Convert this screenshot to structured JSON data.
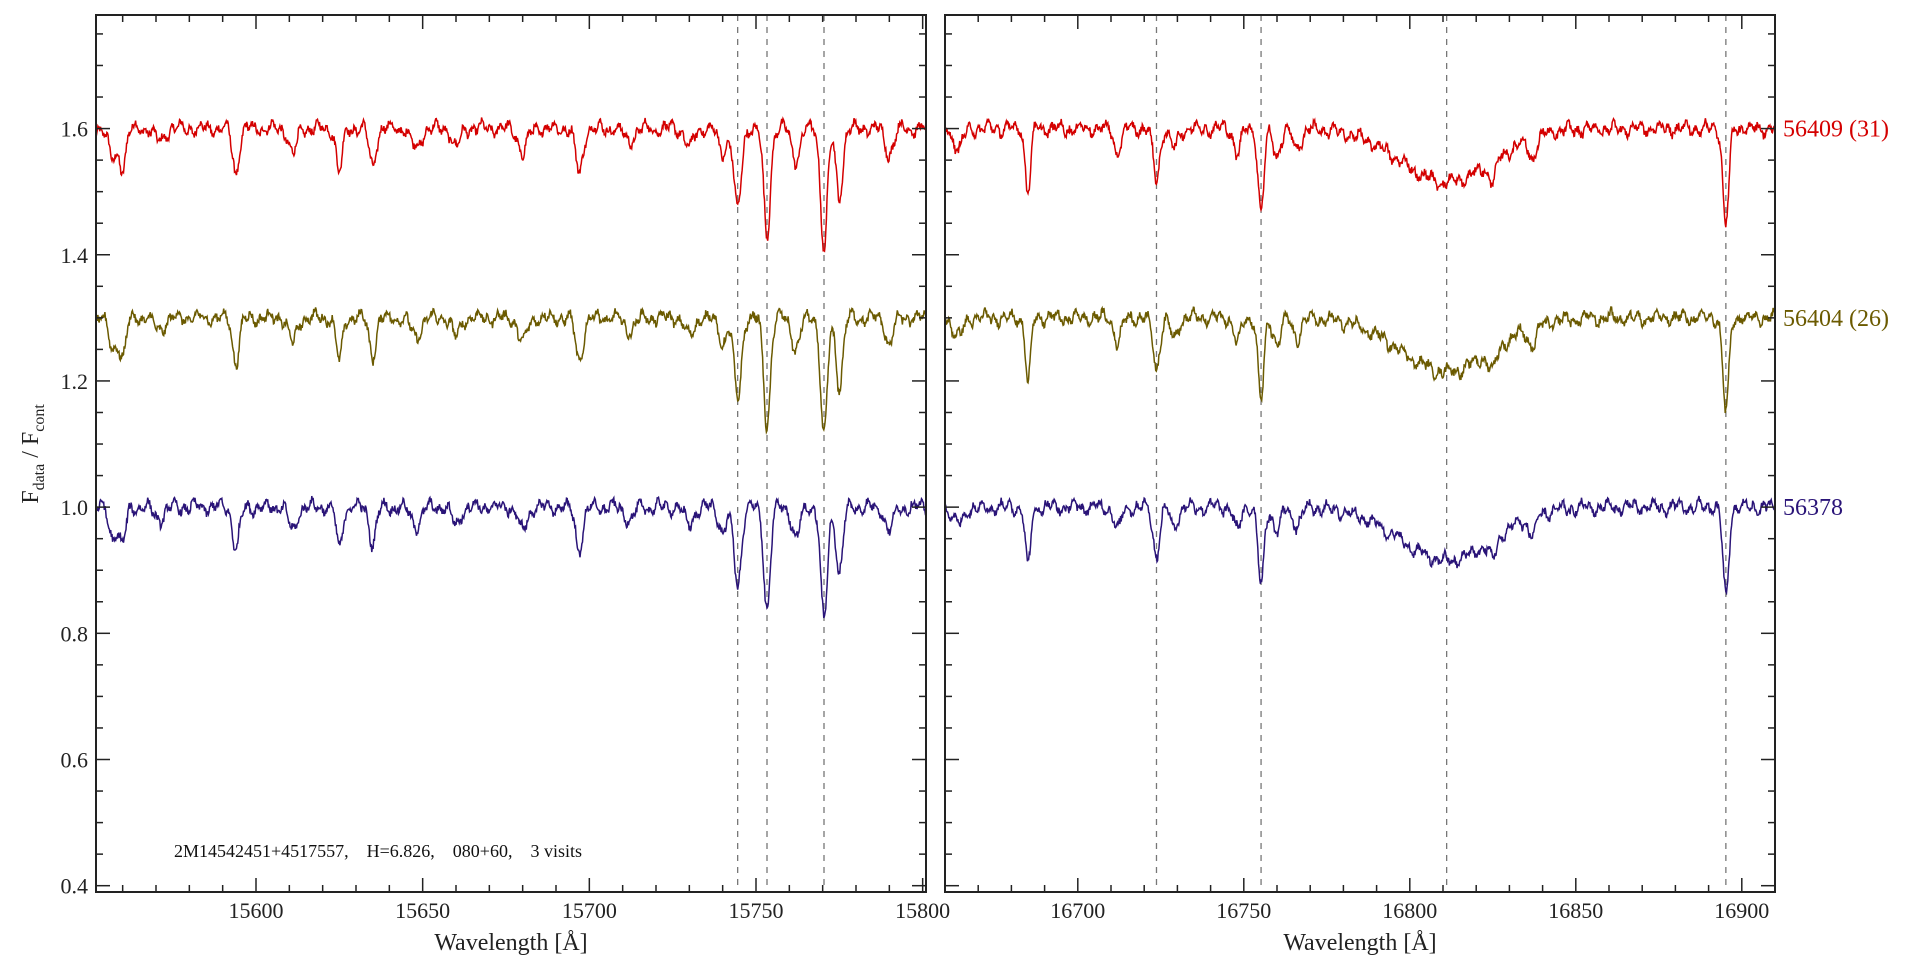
{
  "chart_data": {
    "type": "line",
    "ylabel_main": "F",
    "ylabel_sub1": "data",
    "ylabel_sep": " / F",
    "ylabel_sub2": "cont",
    "ylim": [
      0.39,
      1.78
    ],
    "yticks": [
      0.4,
      0.6,
      0.8,
      1.0,
      1.2,
      1.4,
      1.6
    ],
    "ytick_labels": [
      "0.4",
      "0.6",
      "0.8",
      "1.0",
      "1.2",
      "1.4",
      "1.6"
    ],
    "annotation": "2M14542451+4517557,    H=6.826,    080+60,    3 visits",
    "panels": [
      {
        "xlabel": "Wavelength [Å]",
        "xlim": [
          15552,
          15801
        ],
        "xticks": [
          15600,
          15650,
          15700,
          15750,
          15800
        ],
        "xtick_labels": [
          "15600",
          "15650",
          "15700",
          "15750",
          "15800"
        ],
        "marker_lines": [
          15744.5,
          15753.3,
          15770.4
        ],
        "lines": [
          [
            15557,
            0.05,
            1.2
          ],
          [
            15560,
            0.06,
            1.0
          ],
          [
            15571,
            0.02,
            1.5
          ],
          [
            15594,
            0.07,
            1.0
          ],
          [
            15611,
            0.04,
            1.2
          ],
          [
            15625,
            0.07,
            0.9
          ],
          [
            15635,
            0.06,
            1.0
          ],
          [
            15648,
            0.03,
            1.5
          ],
          [
            15660,
            0.03,
            1.2
          ],
          [
            15680,
            0.04,
            1.3
          ],
          [
            15697,
            0.07,
            1.1
          ],
          [
            15712,
            0.02,
            1.5
          ],
          [
            15730,
            0.03,
            1.3
          ],
          [
            15740,
            0.04,
            1.2
          ],
          [
            15744.5,
            0.13,
            1.1
          ],
          [
            15753.3,
            0.17,
            1.0
          ],
          [
            15762,
            0.05,
            1.2
          ],
          [
            15770.4,
            0.19,
            1.0
          ],
          [
            15775,
            0.11,
            1.0
          ],
          [
            15790,
            0.04,
            1.2
          ]
        ],
        "broad": []
      },
      {
        "xlabel": "Wavelength [Å]",
        "xlim": [
          16660,
          16910
        ],
        "xticks": [
          16700,
          16750,
          16800,
          16850,
          16900
        ],
        "xtick_labels": [
          "16700",
          "16750",
          "16800",
          "16850",
          "16900"
        ],
        "marker_lines": [
          16723.7,
          16755.2,
          16811.1,
          16895.2
        ],
        "lines": [
          [
            16664,
            0.03,
            1.5
          ],
          [
            16685,
            0.1,
            0.8
          ],
          [
            16712,
            0.04,
            1.0
          ],
          [
            16723.7,
            0.08,
            1.0
          ],
          [
            16729,
            0.03,
            1.2
          ],
          [
            16748,
            0.04,
            1.0
          ],
          [
            16755.2,
            0.13,
            0.9
          ],
          [
            16760,
            0.04,
            1.2
          ],
          [
            16766,
            0.03,
            1.3
          ],
          [
            16825,
            0.03,
            1.2
          ],
          [
            16837,
            0.03,
            1.2
          ],
          [
            16895.2,
            0.15,
            0.9
          ]
        ],
        "broad": [
          [
            16811.1,
            0.085,
            14
          ]
        ]
      }
    ],
    "series": [
      {
        "name": "56409 (31)",
        "offset": 1.6,
        "depth_scale": 1.0,
        "color": "#d40000"
      },
      {
        "name": "56404 (26)",
        "offset": 1.3,
        "depth_scale": 1.0,
        "color": "#6b5a00"
      },
      {
        "name": "56378",
        "offset": 1.0,
        "depth_scale": 0.95,
        "color": "#2a1478"
      }
    ]
  }
}
